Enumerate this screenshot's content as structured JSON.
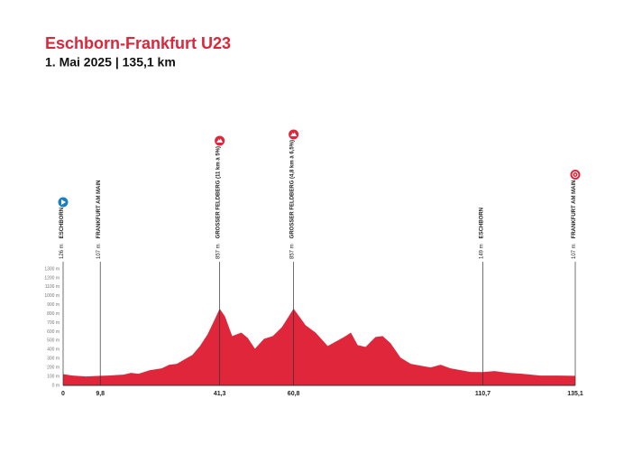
{
  "chart_data": {
    "type": "area",
    "title": "Eschborn-Frankfurt U23",
    "subtitle": "1. Mai 2025 | 135,1 km",
    "color": "#e0263b",
    "x": [
      0,
      2.5,
      6.1,
      9.8,
      11.8,
      15.9,
      17.9,
      19.9,
      22.9,
      26.0,
      28.0,
      30.0,
      32.0,
      34.1,
      36.1,
      38.1,
      39.7,
      41.3,
      42.7,
      44.6,
      47.0,
      48.7,
      50.6,
      53.0,
      55.3,
      57.7,
      60.8,
      64.0,
      66.6,
      69.8,
      72.4,
      74.5,
      75.9,
      77.7,
      79.8,
      82.4,
      84.3,
      86.4,
      89.0,
      91.7,
      94.3,
      96.9,
      99.6,
      102.2,
      104.9,
      107.5,
      110.7,
      113.8,
      117.5,
      121.1,
      125.9,
      130.7,
      135.1
    ],
    "values": [
      126,
      110,
      100,
      107,
      110,
      120,
      140,
      130,
      170,
      190,
      230,
      240,
      290,
      340,
      440,
      570,
      710,
      857,
      770,
      550,
      590,
      530,
      410,
      520,
      550,
      650,
      857,
      670,
      590,
      440,
      500,
      550,
      590,
      450,
      430,
      540,
      550,
      470,
      310,
      240,
      220,
      200,
      230,
      190,
      170,
      150,
      149,
      160,
      140,
      130,
      110,
      110,
      107
    ],
    "xlim": [
      0,
      135.1
    ],
    "ylim": [
      0,
      1300
    ],
    "xticks": [
      0,
      {
        "value": 9.8,
        "label": "9,8"
      },
      {
        "value": 41.3,
        "label": "41,3"
      },
      {
        "value": 60.8,
        "label": "60,8"
      },
      {
        "value": 110.7,
        "label": "110,7"
      },
      {
        "value": 135.1,
        "label": "135,1"
      }
    ],
    "yticks": [
      {
        "value": 0,
        "label": "0 m"
      },
      {
        "value": 100,
        "label": "100 m"
      },
      {
        "value": 200,
        "label": "200 m"
      },
      {
        "value": 300,
        "label": "300 m"
      },
      {
        "value": 400,
        "label": "400 m"
      },
      {
        "value": 500,
        "label": "500 m"
      },
      {
        "value": 600,
        "label": "600 m"
      },
      {
        "value": 700,
        "label": "700 m"
      },
      {
        "value": 800,
        "label": "800 m"
      },
      {
        "value": 900,
        "label": "900 m"
      },
      {
        "value": 1000,
        "label": "1000 m"
      },
      {
        "value": 1100,
        "label": "1100 m"
      },
      {
        "value": 1200,
        "label": "1200 m"
      },
      {
        "value": 1300,
        "label": "1300 m"
      }
    ],
    "waypoints": [
      {
        "elevation": "126 m",
        "name": "ESCHBORN",
        "icon": "start"
      },
      {
        "elevation": "107 m",
        "name": "FRANKFURT AM MAIN"
      },
      {
        "elevation": "857 m",
        "name": "GROSSER FELDBERG (11 km à 5%)",
        "icon": "climb"
      },
      {
        "elevation": "857 m",
        "name": "GROSSER FELDBERG (4,8 km à 6,5%)",
        "icon": "climb"
      },
      {
        "elevation": "149 m",
        "name": "ESCHBORN"
      },
      {
        "elevation": "107 m",
        "name": "FRANKFURT AM MAIN",
        "icon": "finish"
      }
    ]
  }
}
